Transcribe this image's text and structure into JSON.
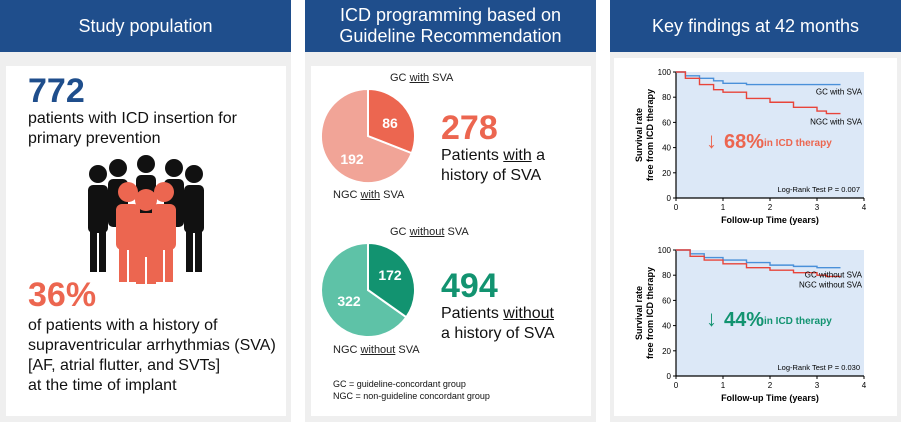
{
  "panels": {
    "left": {
      "title": "Study population",
      "count": "772",
      "count_desc": "patients with ICD insertion for primary prevention",
      "pct": "36%",
      "pct_desc": [
        "of patients with a history of",
        "supraventricular arrhythmias (SVA)",
        "[AF, atrial flutter, and SVTs]",
        "at the time of implant"
      ]
    },
    "middle": {
      "title": "ICD programming based on Guideline Recommendation",
      "pie1": {
        "label_top_pre": "GC ",
        "label_top_u": "with",
        "label_top_post": " SVA",
        "label_bottom_pre": "NGC ",
        "label_bottom_u": "with",
        "label_bottom_post": " SVA",
        "gc_value": "86",
        "ngc_value": "192",
        "total": "278",
        "desc_1": "Patients ",
        "desc_1u": "with",
        "desc_1post": " a",
        "desc_2": "history of SVA"
      },
      "pie2": {
        "label_top_pre": "GC ",
        "label_top_u": "without",
        "label_top_post": " SVA",
        "label_bottom_pre": "NGC ",
        "label_bottom_u": "without",
        "label_bottom_post": " SVA",
        "gc_value": "172",
        "ngc_value": "322",
        "total": "494",
        "desc_1": "Patients ",
        "desc_1u": "without",
        "desc_1post": "",
        "desc_2": "a history of SVA"
      },
      "footnote_1": "GC = guideline-concordant group",
      "footnote_2": "NGC = non-guideline concordant group"
    },
    "right": {
      "title": "Key findings at 42 months",
      "chart1": {
        "series_top": "GC with SVA",
        "series_bottom": "NGC with SVA",
        "arrow": "↓",
        "finding_pct": "68%",
        "finding_text": " in ICD therapy",
        "logrank": "Log-Rank Test P = 0.007"
      },
      "chart2": {
        "series_top": "GC without SVA",
        "series_bottom": "NGC without SVA",
        "arrow": "↓",
        "finding_pct": "44%",
        "finding_text": " in ICD therapy",
        "logrank": "Log-Rank Test P = 0.030"
      },
      "ylabel_1": "Survival rate",
      "ylabel_2": "free from ICD therapy",
      "xlabel": "Follow-up Time (years)",
      "x_ticks": [
        "0",
        "1",
        "2",
        "3",
        "4"
      ],
      "y_ticks": [
        "0",
        "20",
        "40",
        "60",
        "80",
        "100"
      ]
    }
  },
  "chart_data": [
    {
      "type": "line",
      "xlabel": "Follow-up Time (years)",
      "ylabel": "Survival rate free from ICD therapy",
      "xlim": [
        0,
        4
      ],
      "ylim": [
        0,
        100
      ],
      "series": [
        {
          "name": "GC with SVA",
          "x": [
            0,
            0.2,
            0.5,
            0.8,
            1.0,
            1.5,
            2.0,
            3.0,
            3.5
          ],
          "values": [
            100,
            97,
            95,
            93,
            91,
            90,
            90,
            90,
            90
          ]
        },
        {
          "name": "NGC with SVA",
          "x": [
            0,
            0.2,
            0.5,
            0.8,
            1.0,
            1.5,
            2.0,
            2.5,
            3.0,
            3.2,
            3.5
          ],
          "values": [
            100,
            95,
            90,
            86,
            84,
            79,
            76,
            72,
            69,
            67,
            67
          ]
        }
      ]
    },
    {
      "type": "line",
      "xlabel": "Follow-up Time (years)",
      "ylabel": "Survival rate free from ICD therapy",
      "xlim": [
        0,
        4
      ],
      "ylim": [
        0,
        100
      ],
      "series": [
        {
          "name": "GC without SVA",
          "x": [
            0,
            0.3,
            0.6,
            1.0,
            1.5,
            2.0,
            2.5,
            3.0,
            3.5
          ],
          "values": [
            100,
            97,
            94,
            92,
            90,
            88,
            87,
            86,
            86
          ]
        },
        {
          "name": "NGC without SVA",
          "x": [
            0,
            0.3,
            0.6,
            1.0,
            1.5,
            2.0,
            2.5,
            3.0,
            3.2,
            3.5
          ],
          "values": [
            100,
            95,
            92,
            89,
            86,
            84,
            82,
            80,
            79,
            79
          ]
        }
      ]
    }
  ],
  "pies": [
    {
      "gc": 86,
      "ngc": 192,
      "gc_color": "#ec6650",
      "ngc_color": "#f1a497"
    },
    {
      "gc": 172,
      "ngc": 322,
      "gc_color": "#129370",
      "ngc_color": "#5ec2a7"
    }
  ],
  "colors": {
    "header": "#1f4e8c",
    "panel_bg": "#efefef",
    "red": "#ec6650",
    "green": "#129370",
    "blue_line": "#4a90d9",
    "red_line": "#e8443a",
    "chart_bg": "#dce8f7"
  }
}
